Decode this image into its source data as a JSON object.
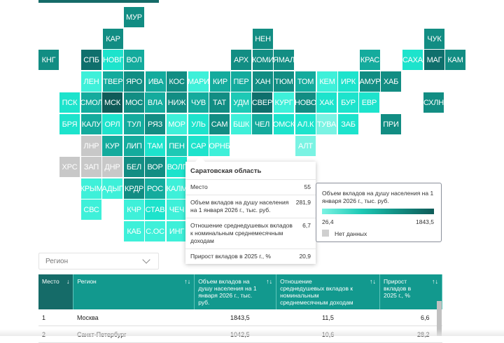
{
  "map": {
    "colors": {
      "c1": "#7af3e3",
      "c2": "#3ef0d9",
      "c3": "#1de3cc",
      "c4": "#1dc9b5",
      "c5": "#14ab9d",
      "c6": "#128d83",
      "c7": "#0f6f6c",
      "c8": "#0f5b58",
      "nd": "#c8c8c8"
    },
    "cells": [
      {
        "code": "МУР",
        "c": 6,
        "r": 0,
        "cl": "c6"
      },
      {
        "code": "КАР",
        "c": 5,
        "r": 1,
        "cl": "c6"
      },
      {
        "code": "НЕН",
        "c": 12,
        "r": 1,
        "cl": "c6"
      },
      {
        "code": "ЧУК",
        "c": 20,
        "r": 1,
        "cl": "c6"
      },
      {
        "code": "КНГ",
        "c": 0,
        "r": 2,
        "cl": "c6"
      },
      {
        "code": "СПБ",
        "c": 4,
        "r": 2,
        "cl": "c7"
      },
      {
        "code": "НОВГ",
        "c": 5,
        "r": 2,
        "cl": "c3"
      },
      {
        "code": "ВОЛ",
        "c": 6,
        "r": 2,
        "cl": "c5"
      },
      {
        "code": "АРХ",
        "c": 11,
        "r": 2,
        "cl": "c6"
      },
      {
        "code": "КОМИ",
        "c": 12,
        "r": 2,
        "cl": "c6"
      },
      {
        "code": "ЯМАЛ",
        "c": 13,
        "r": 2,
        "cl": "c6"
      },
      {
        "code": "КРАС",
        "c": 17,
        "r": 2,
        "cl": "c5"
      },
      {
        "code": "САХА",
        "c": 19,
        "r": 2,
        "cl": "c3"
      },
      {
        "code": "МАГ",
        "c": 20,
        "r": 2,
        "cl": "c7"
      },
      {
        "code": "КАМ",
        "c": 21,
        "r": 2,
        "cl": "c6"
      },
      {
        "code": "ЛЕН",
        "c": 4,
        "r": 3,
        "cl": "c2"
      },
      {
        "code": "ТВЕР",
        "c": 5,
        "r": 3,
        "cl": "c5"
      },
      {
        "code": "ЯРО",
        "c": 6,
        "r": 3,
        "cl": "c6"
      },
      {
        "code": "ИВА",
        "c": 7,
        "r": 3,
        "cl": "c5"
      },
      {
        "code": "КОС",
        "c": 8,
        "r": 3,
        "cl": "c6"
      },
      {
        "code": "МАРИ",
        "c": 9,
        "r": 3,
        "cl": "c2"
      },
      {
        "code": "КИР",
        "c": 10,
        "r": 3,
        "cl": "c5"
      },
      {
        "code": "ПЕР",
        "c": 11,
        "r": 3,
        "cl": "c5"
      },
      {
        "code": "ХАН",
        "c": 12,
        "r": 3,
        "cl": "c6"
      },
      {
        "code": "ТЮМ",
        "c": 13,
        "r": 3,
        "cl": "c6"
      },
      {
        "code": "ТОМ",
        "c": 14,
        "r": 3,
        "cl": "c5"
      },
      {
        "code": "КЕМ",
        "c": 15,
        "r": 3,
        "cl": "c2"
      },
      {
        "code": "ИРК",
        "c": 16,
        "r": 3,
        "cl": "c3"
      },
      {
        "code": "АМУР",
        "c": 17,
        "r": 3,
        "cl": "c6"
      },
      {
        "code": "ХАБ",
        "c": 18,
        "r": 3,
        "cl": "c6"
      },
      {
        "code": "ПСК",
        "c": 1,
        "r": 4,
        "cl": "c3"
      },
      {
        "code": "СМОЛ",
        "c": 2,
        "r": 4,
        "cl": "c5"
      },
      {
        "code": "МСК",
        "c": 3,
        "r": 4,
        "cl": "c8"
      },
      {
        "code": "МОС",
        "c": 4,
        "r": 4,
        "cl": "c6"
      },
      {
        "code": "ВЛА",
        "c": 5,
        "r": 4,
        "cl": "c5"
      },
      {
        "code": "НИЖ",
        "c": 6,
        "r": 4,
        "cl": "c6"
      },
      {
        "code": "ЧУВ",
        "c": 7,
        "r": 4,
        "cl": "c5"
      },
      {
        "code": "ТАТ",
        "c": 8,
        "r": 4,
        "cl": "c6"
      },
      {
        "code": "УДМ",
        "c": 9,
        "r": 4,
        "cl": "c4"
      },
      {
        "code": "СВЕР",
        "c": 10,
        "r": 4,
        "cl": "c7"
      },
      {
        "code": "КУРГ",
        "c": 11,
        "r": 4,
        "cl": "c2"
      },
      {
        "code": "НОВО",
        "c": 12,
        "r": 4,
        "cl": "c6"
      },
      {
        "code": "ХАК",
        "c": 13,
        "r": 4,
        "cl": "c3"
      },
      {
        "code": "БУР",
        "c": 14,
        "r": 4,
        "cl": "c3"
      },
      {
        "code": "ЕВР",
        "c": 15,
        "r": 4,
        "cl": "c3"
      },
      {
        "code": "СХЛН",
        "c": 18,
        "r": 4,
        "cl": "c6"
      },
      {
        "code": "БРЯ",
        "c": 1,
        "r": 5,
        "cl": "c3"
      },
      {
        "code": "КАЛУ",
        "c": 2,
        "r": 5,
        "cl": "c5"
      },
      {
        "code": "ОРЛ",
        "c": 3,
        "r": 5,
        "cl": "c3"
      },
      {
        "code": "ТУЛ",
        "c": 4,
        "r": 5,
        "cl": "c5"
      },
      {
        "code": "РЯЗ",
        "c": 5,
        "r": 5,
        "cl": "c6"
      },
      {
        "code": "МОР",
        "c": 6,
        "r": 5,
        "cl": "c2"
      },
      {
        "code": "УЛЬ",
        "c": 7,
        "r": 5,
        "cl": "c3"
      },
      {
        "code": "САМ",
        "c": 8,
        "r": 5,
        "cl": "c6"
      },
      {
        "code": "БШК",
        "c": 9,
        "r": 5,
        "cl": "c2"
      },
      {
        "code": "ЧЕЛ",
        "c": 10,
        "r": 5,
        "cl": "c5"
      },
      {
        "code": "ОМСК",
        "c": 11,
        "r": 5,
        "cl": "c3"
      },
      {
        "code": "АЛ.К",
        "c": 12,
        "r": 5,
        "cl": "c3"
      },
      {
        "code": "ТУВА",
        "c": 13,
        "r": 5,
        "cl": "c1"
      },
      {
        "code": "ЗАБ",
        "c": 14,
        "r": 5,
        "cl": "c3"
      },
      {
        "code": "ПРИ",
        "c": 16,
        "r": 5,
        "cl": "c6"
      },
      {
        "code": "ЛНР",
        "c": 2,
        "r": 6,
        "cl": "nd"
      },
      {
        "code": "КУР",
        "c": 3,
        "r": 6,
        "cl": "c5"
      },
      {
        "code": "ЛИП",
        "c": 4,
        "r": 6,
        "cl": "c5"
      },
      {
        "code": "ТАМ",
        "c": 5,
        "r": 6,
        "cl": "c3"
      },
      {
        "code": "ПЕН",
        "c": 6,
        "r": 6,
        "cl": "c4"
      },
      {
        "code": "САР",
        "c": 7,
        "r": 6,
        "cl": "c3",
        "sel": true
      },
      {
        "code": "ОРНБ",
        "c": 8,
        "r": 6,
        "cl": "c2"
      },
      {
        "code": "АЛТ",
        "c": 12,
        "r": 6,
        "cl": "c1"
      },
      {
        "code": "ХРС",
        "c": 1,
        "r": 7,
        "cl": "nd"
      },
      {
        "code": "ЗАП",
        "c": 2,
        "r": 7,
        "cl": "nd"
      },
      {
        "code": "ДНР",
        "c": 3,
        "r": 7,
        "cl": "nd"
      },
      {
        "code": "БЕЛ",
        "c": 4,
        "r": 7,
        "cl": "c6"
      },
      {
        "code": "ВОР",
        "c": 5,
        "r": 7,
        "cl": "c6"
      },
      {
        "code": "ВОЛГ",
        "c": 6,
        "r": 7,
        "cl": "c3"
      },
      {
        "code": "КРЫМ",
        "c": 2,
        "r": 8,
        "cl": "c2"
      },
      {
        "code": "АДЫГ",
        "c": 3,
        "r": 8,
        "cl": "c2"
      },
      {
        "code": "КРДР",
        "c": 4,
        "r": 8,
        "cl": "c6"
      },
      {
        "code": "РОС",
        "c": 5,
        "r": 8,
        "cl": "c5"
      },
      {
        "code": "КАЛМ",
        "c": 6,
        "r": 8,
        "cl": "c2"
      },
      {
        "code": "СВС",
        "c": 2,
        "r": 9,
        "cl": "c2"
      },
      {
        "code": "КЧР",
        "c": 4,
        "r": 9,
        "cl": "c2"
      },
      {
        "code": "СТАВ",
        "c": 5,
        "r": 9,
        "cl": "c3"
      },
      {
        "code": "ЧЕЧ",
        "c": 6,
        "r": 9,
        "cl": "c2"
      },
      {
        "code": "КАБ",
        "c": 4,
        "r": 10,
        "cl": "c2"
      },
      {
        "code": "С.ОС",
        "c": 5,
        "r": 10,
        "cl": "c2"
      },
      {
        "code": "ИНГ",
        "c": 6,
        "r": 10,
        "cl": "c2"
      }
    ]
  },
  "tooltip": {
    "title": "Саратовская область",
    "rows": [
      {
        "label": "Место",
        "value": "55"
      },
      {
        "label": "Объем вкладов на душу населения на 1 января 2026 г., тыс. руб.",
        "value": "281,9"
      },
      {
        "label": "Отношение среднедушевых вкладов к номинальным среднемесячным доходам",
        "value": "6,7"
      },
      {
        "label": "Прирост вкладов в 2025 г., %",
        "value": "20,9"
      }
    ]
  },
  "legend": {
    "title": "Объем вкладов на душу населения на 1 января 2026 г., тыс. руб.",
    "min": "26,4",
    "max": "1843,5",
    "no_data": "Нет данных"
  },
  "filter": {
    "placeholder": "Регион"
  },
  "table": {
    "headers": [
      {
        "label": "Место",
        "sort": "↓"
      },
      {
        "label": "Регион",
        "sort": "↑↓"
      },
      {
        "label": "Объем вкладов на душу населения на 1 января 2026 г., тыс. руб.",
        "sort": "↑↓"
      },
      {
        "label": "Отношение среднедушевых вкладов к номинальным среднемесячным доходам",
        "sort": "↑↓"
      },
      {
        "label": "Прирост вкладов в 2025 г., %",
        "sort": "↑↓"
      }
    ],
    "rows": [
      {
        "place": "1",
        "region": "Москва",
        "deposits": "1843,5",
        "ratio": "11,5",
        "growth": "6,6"
      },
      {
        "place": "2",
        "region": "Санкт-Петербург",
        "deposits": "1042,5",
        "ratio": "10,6",
        "growth": "28,2"
      }
    ]
  }
}
